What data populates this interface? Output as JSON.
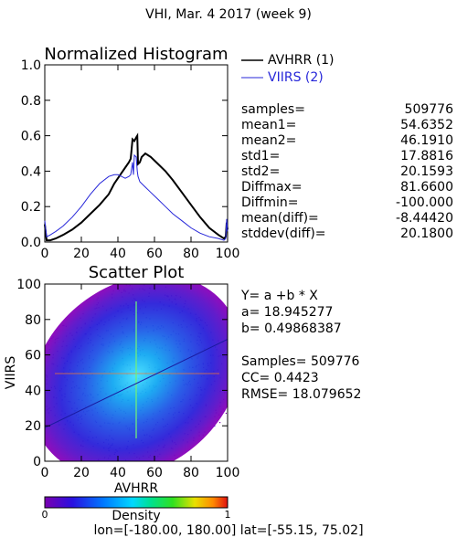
{
  "header": {
    "title": "VHI,  Mar. 4 2017 (week 9)"
  },
  "colors": {
    "avhrr": "#000000",
    "viirs": "#2626d9",
    "bg": "#ffffff"
  },
  "chart_data": [
    {
      "type": "line",
      "title": "Normalized Histogram",
      "xlabel": "",
      "ylabel": "",
      "xlim": [
        0,
        100
      ],
      "ylim": [
        0,
        1.0
      ],
      "xticks": [
        "0",
        "20",
        "40",
        "60",
        "80",
        "100"
      ],
      "yticks": [
        "0.0",
        "0.2",
        "0.4",
        "0.6",
        "0.8",
        "1.0"
      ],
      "legend_position": "top-right",
      "series": [
        {
          "name": "AVHRR (1)",
          "color": "#000000",
          "x": [
            0,
            1,
            3,
            6,
            10,
            15,
            20,
            25,
            30,
            35,
            38,
            40,
            42,
            44,
            46,
            47,
            48,
            49,
            50,
            50.6,
            51,
            52,
            53,
            55,
            58,
            62,
            66,
            70,
            75,
            80,
            85,
            90,
            95,
            98,
            99,
            99.5,
            100
          ],
          "y": [
            0.1,
            0.01,
            0.01,
            0.02,
            0.04,
            0.07,
            0.11,
            0.16,
            0.21,
            0.27,
            0.33,
            0.36,
            0.39,
            0.42,
            0.45,
            0.47,
            0.58,
            0.57,
            0.59,
            0.6,
            0.44,
            0.45,
            0.48,
            0.5,
            0.48,
            0.44,
            0.4,
            0.35,
            0.28,
            0.21,
            0.14,
            0.08,
            0.04,
            0.02,
            0.03,
            0.11,
            0.07
          ]
        },
        {
          "name": "VIIRS (2)",
          "color": "#2626d9",
          "x": [
            0,
            1,
            3,
            6,
            10,
            15,
            20,
            25,
            30,
            35,
            38,
            40,
            42,
            44,
            46,
            47,
            48,
            48.5,
            49,
            50,
            50.6,
            51,
            52,
            55,
            58,
            62,
            66,
            70,
            75,
            80,
            85,
            90,
            95,
            98,
            99,
            99.5,
            100
          ],
          "y": [
            0.12,
            0.03,
            0.04,
            0.06,
            0.09,
            0.14,
            0.2,
            0.27,
            0.33,
            0.37,
            0.38,
            0.38,
            0.37,
            0.36,
            0.37,
            0.38,
            0.45,
            0.38,
            0.49,
            0.48,
            0.4,
            0.37,
            0.34,
            0.31,
            0.28,
            0.24,
            0.2,
            0.16,
            0.12,
            0.08,
            0.05,
            0.03,
            0.02,
            0.01,
            0.02,
            0.13,
            0.06
          ]
        }
      ]
    },
    {
      "type": "heatmap",
      "title": "Scatter Plot",
      "xlabel": "AVHRR",
      "ylabel": "VIIRS",
      "xlim": [
        0,
        100
      ],
      "ylim": [
        0,
        100
      ],
      "xticks": [
        "0",
        "20",
        "40",
        "60",
        "80",
        "100"
      ],
      "yticks": [
        "0",
        "20",
        "40",
        "60",
        "80",
        "100"
      ],
      "regression": {
        "a": 18.945277,
        "b": 0.49868387
      },
      "density_center": [
        50,
        48
      ],
      "colorbar": {
        "label": "Density",
        "min": "0",
        "max": "1"
      }
    }
  ],
  "stats": [
    {
      "label": "samples=",
      "value": "509776"
    },
    {
      "label": "mean1=",
      "value": "54.6352"
    },
    {
      "label": "mean2=",
      "value": "46.1910"
    },
    {
      "label": "std1=",
      "value": "17.8816"
    },
    {
      "label": "std2=",
      "value": "20.1593"
    },
    {
      "label": "Diffmax=",
      "value": "81.6600"
    },
    {
      "label": "Diffmin=",
      "value": "-100.000"
    },
    {
      "label": "mean(diff)=",
      "value": "-8.44420"
    },
    {
      "label": "stddev(diff)=",
      "value": "20.1800"
    }
  ],
  "regression_text": {
    "formula": "Y= a +b * X",
    "a_line": "a= 18.945277",
    "b_line": "b= 0.49868387",
    "samples_line": "Samples= 509776",
    "cc_line": "CC=  0.4423",
    "rmse_line": "RMSE= 18.079652"
  },
  "footer": {
    "text": "lon=[-180.00, 180.00] lat=[-55.15, 75.02]"
  }
}
